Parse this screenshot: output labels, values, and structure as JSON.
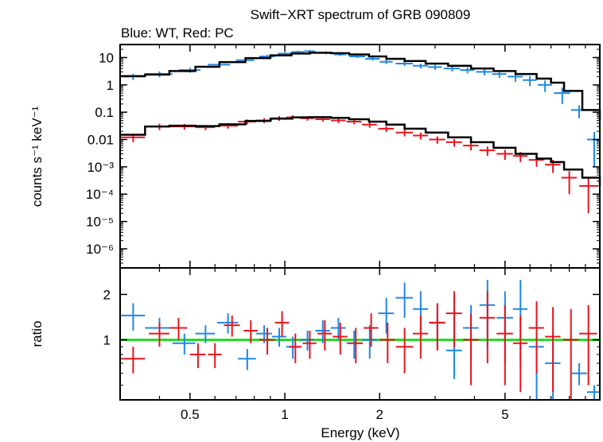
{
  "chart_data": {
    "type": "scatter",
    "title": "Swift−XRT spectrum of GRB 090809",
    "subtitle": "Blue: WT, Red: PC",
    "xlabel": "Energy (keV)",
    "x_scale": "log",
    "xlim": [
      0.3,
      10
    ],
    "x_ticks": [
      {
        "value": 0.5,
        "label": "0.5"
      },
      {
        "value": 1,
        "label": "1"
      },
      {
        "value": 2,
        "label": "2"
      },
      {
        "value": 5,
        "label": "5"
      }
    ],
    "colors": {
      "wt": "#1e88e5",
      "pc": "#e8141c",
      "model": "#000000",
      "unity": "#22dd22"
    },
    "top_panel": {
      "ylabel": "counts s⁻¹ keV⁻¹",
      "y_scale": "log",
      "ylim": [
        2e-07,
        30
      ],
      "y_ticks": [
        {
          "value": 10,
          "label": "10"
        },
        {
          "value": 1,
          "label": "1"
        },
        {
          "value": 0.1,
          "label": "0.1"
        },
        {
          "value": 0.01,
          "label": "0.01"
        },
        {
          "value": 0.001,
          "label": "10⁻³"
        },
        {
          "value": 0.0001,
          "label": "10⁻⁴"
        },
        {
          "value": 1e-05,
          "label": "10⁻⁵"
        },
        {
          "value": 1e-06,
          "label": "10⁻⁶"
        }
      ],
      "series": [
        {
          "name": "WT",
          "color": "#1e88e5",
          "x": [
            0.33,
            0.4,
            0.5,
            0.62,
            0.75,
            0.88,
            1.0,
            1.1,
            1.2,
            1.35,
            1.5,
            1.7,
            1.9,
            2.1,
            2.4,
            2.7,
            3.0,
            3.4,
            3.8,
            4.3,
            4.8,
            5.4,
            6.0,
            6.7,
            7.6,
            8.6,
            9.6
          ],
          "y": [
            2.0,
            2.5,
            3.5,
            5.5,
            8.0,
            11,
            14,
            16,
            17,
            15,
            13,
            11,
            9,
            7,
            6,
            5,
            4.5,
            4,
            3.5,
            3,
            2.5,
            2,
            1.5,
            1,
            0.5,
            0.12,
            0.01
          ],
          "xerr": [
            0.03,
            0.04,
            0.04,
            0.05,
            0.05,
            0.05,
            0.05,
            0.05,
            0.05,
            0.07,
            0.07,
            0.1,
            0.1,
            0.1,
            0.15,
            0.15,
            0.15,
            0.2,
            0.2,
            0.25,
            0.25,
            0.3,
            0.3,
            0.35,
            0.45,
            0.5,
            0.5
          ],
          "yerr": [
            0.5,
            0.6,
            0.7,
            1.0,
            1.2,
            1.5,
            1.6,
            1.8,
            2.0,
            1.8,
            1.6,
            1.5,
            1.3,
            1.2,
            1.1,
            1.0,
            1.0,
            0.9,
            0.9,
            0.8,
            0.7,
            0.7,
            0.6,
            0.45,
            0.3,
            0.06,
            0.009
          ]
        },
        {
          "name": "PC",
          "color": "#e8141c",
          "x": [
            0.33,
            0.4,
            0.48,
            0.56,
            0.66,
            0.76,
            0.86,
            0.96,
            1.06,
            1.18,
            1.32,
            1.48,
            1.66,
            1.86,
            2.1,
            2.4,
            2.7,
            3.05,
            3.45,
            3.9,
            4.4,
            5.0,
            5.6,
            6.3,
            7.1,
            8.0,
            9.2
          ],
          "y": [
            0.012,
            0.03,
            0.03,
            0.028,
            0.032,
            0.045,
            0.05,
            0.06,
            0.065,
            0.06,
            0.055,
            0.05,
            0.045,
            0.035,
            0.025,
            0.018,
            0.014,
            0.01,
            0.008,
            0.006,
            0.004,
            0.003,
            0.0025,
            0.0018,
            0.0012,
            0.0004,
            0.0002
          ],
          "xerr": [
            0.03,
            0.04,
            0.04,
            0.04,
            0.05,
            0.05,
            0.05,
            0.05,
            0.05,
            0.06,
            0.07,
            0.08,
            0.09,
            0.1,
            0.12,
            0.15,
            0.15,
            0.18,
            0.2,
            0.22,
            0.25,
            0.3,
            0.3,
            0.35,
            0.4,
            0.45,
            0.6
          ],
          "yerr": [
            0.004,
            0.008,
            0.007,
            0.006,
            0.007,
            0.009,
            0.01,
            0.012,
            0.012,
            0.011,
            0.01,
            0.01,
            0.009,
            0.008,
            0.006,
            0.005,
            0.004,
            0.003,
            0.0025,
            0.002,
            0.0015,
            0.0012,
            0.001,
            0.0008,
            0.0006,
            0.0003,
            0.00018
          ]
        }
      ],
      "models": [
        {
          "name": "WT model",
          "x": [
            0.3,
            0.36,
            0.43,
            0.52,
            0.62,
            0.75,
            0.9,
            1.05,
            1.2,
            1.4,
            1.6,
            1.85,
            2.1,
            2.4,
            2.8,
            3.3,
            3.9,
            4.6,
            5.4,
            6.3,
            7.0,
            7.7,
            8.8,
            10
          ],
          "y": [
            2.1,
            2.4,
            3.2,
            4.6,
            6.8,
            9.5,
            12,
            14,
            15,
            14.5,
            13,
            11,
            9,
            7.5,
            6,
            5,
            4,
            3.2,
            2.5,
            1.7,
            1.2,
            0.6,
            0.12,
            0.05
          ]
        },
        {
          "name": "PC model",
          "x": [
            0.3,
            0.36,
            0.43,
            0.52,
            0.62,
            0.75,
            0.9,
            1.05,
            1.2,
            1.4,
            1.6,
            1.85,
            2.1,
            2.4,
            2.8,
            3.3,
            3.9,
            4.6,
            5.4,
            6.3,
            7.0,
            7.7,
            8.8,
            10
          ],
          "y": [
            0.015,
            0.03,
            0.032,
            0.031,
            0.036,
            0.048,
            0.058,
            0.065,
            0.066,
            0.062,
            0.055,
            0.045,
            0.035,
            0.025,
            0.018,
            0.012,
            0.008,
            0.005,
            0.003,
            0.002,
            0.0015,
            0.0008,
            0.0004,
            0.0002
          ]
        }
      ]
    },
    "bottom_panel": {
      "ylabel": "ratio",
      "y_scale": "log",
      "ylim": [
        0.4,
        3.0
      ],
      "y_ticks": [
        {
          "value": 1,
          "label": "1"
        },
        {
          "value": 2,
          "label": "2"
        }
      ],
      "reference_line": 1,
      "series": [
        {
          "name": "WT",
          "color": "#1e88e5",
          "x": [
            0.33,
            0.4,
            0.48,
            0.56,
            0.66,
            0.76,
            0.86,
            0.96,
            1.06,
            1.18,
            1.32,
            1.48,
            1.66,
            1.86,
            2.1,
            2.4,
            2.7,
            3.05,
            3.45,
            3.9,
            4.4,
            5.0,
            5.6,
            6.3,
            7.1,
            8.6,
            9.6
          ],
          "y": [
            1.45,
            1.2,
            0.95,
            1.1,
            1.3,
            0.75,
            1.1,
            1.05,
            0.9,
            1.0,
            1.15,
            1.2,
            0.95,
            1.0,
            1.5,
            1.9,
            1.6,
            1.3,
            0.85,
            1.2,
            1.7,
            1.4,
            1.6,
            0.9,
            0.7,
            0.6,
            0.45
          ],
          "xerr": [
            0.03,
            0.04,
            0.04,
            0.04,
            0.05,
            0.05,
            0.05,
            0.05,
            0.05,
            0.06,
            0.07,
            0.08,
            0.09,
            0.1,
            0.12,
            0.15,
            0.15,
            0.18,
            0.2,
            0.22,
            0.25,
            0.3,
            0.3,
            0.35,
            0.4,
            0.5,
            0.5
          ],
          "yerr": [
            0.3,
            0.2,
            0.15,
            0.15,
            0.2,
            0.12,
            0.15,
            0.15,
            0.15,
            0.15,
            0.2,
            0.2,
            0.2,
            0.25,
            0.4,
            0.5,
            0.5,
            0.4,
            0.3,
            0.5,
            0.8,
            0.7,
            0.9,
            0.5,
            0.4,
            0.1,
            0.05
          ]
        },
        {
          "name": "PC",
          "color": "#e8141c",
          "x": [
            0.33,
            0.4,
            0.46,
            0.53,
            0.6,
            0.68,
            0.78,
            0.88,
            0.98,
            1.08,
            1.2,
            1.34,
            1.5,
            1.68,
            1.88,
            2.12,
            2.4,
            2.7,
            3.05,
            3.45,
            3.9,
            4.4,
            5.0,
            5.6,
            6.3,
            7.1,
            8.1,
            9.2
          ],
          "y": [
            0.75,
            1.1,
            1.2,
            0.8,
            0.8,
            1.25,
            1.15,
            1.0,
            1.3,
            0.9,
            0.95,
            1.1,
            1.05,
            0.95,
            1.2,
            1.0,
            0.9,
            1.1,
            1.3,
            1.5,
            1.0,
            1.4,
            1.1,
            0.95,
            1.2,
            1.05,
            1.0,
            1.1
          ],
          "xerr": [
            0.03,
            0.03,
            0.03,
            0.03,
            0.03,
            0.04,
            0.04,
            0.05,
            0.05,
            0.05,
            0.06,
            0.07,
            0.08,
            0.09,
            0.1,
            0.12,
            0.15,
            0.15,
            0.18,
            0.2,
            0.22,
            0.25,
            0.3,
            0.3,
            0.35,
            0.4,
            0.45,
            0.6
          ],
          "yerr": [
            0.15,
            0.2,
            0.2,
            0.15,
            0.15,
            0.2,
            0.2,
            0.2,
            0.25,
            0.2,
            0.2,
            0.25,
            0.25,
            0.25,
            0.3,
            0.3,
            0.3,
            0.35,
            0.45,
            0.6,
            0.5,
            0.7,
            0.6,
            0.5,
            0.6,
            0.6,
            0.6,
            0.6
          ]
        }
      ]
    }
  }
}
